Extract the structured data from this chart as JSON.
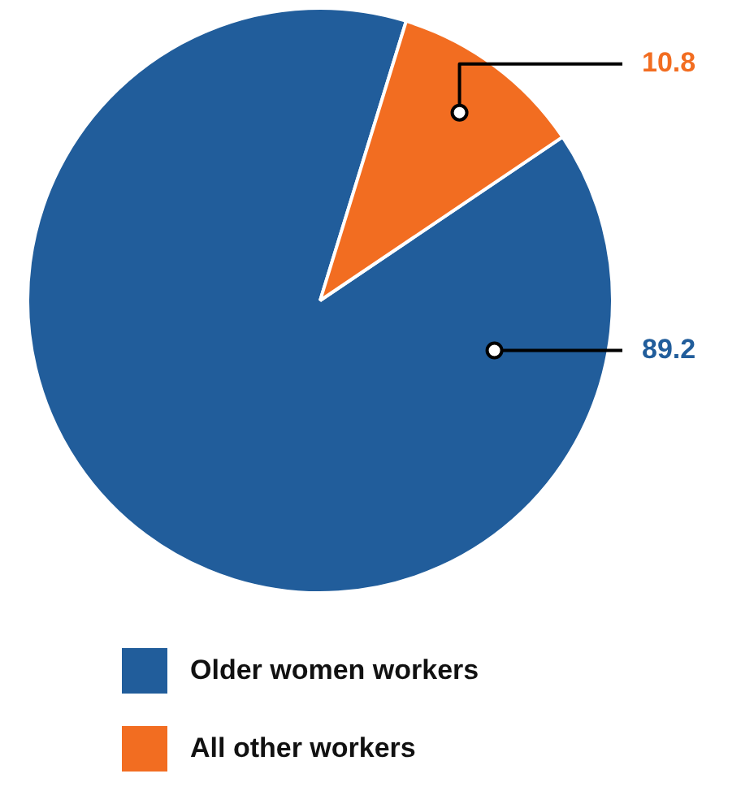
{
  "chart_data": {
    "type": "pie",
    "categories": [
      "Older women workers",
      "All other workers"
    ],
    "values": [
      89.2,
      10.8
    ],
    "colors": [
      "#215d9b",
      "#f26d21"
    ],
    "data_labels": true,
    "legend": "bottom"
  }
}
